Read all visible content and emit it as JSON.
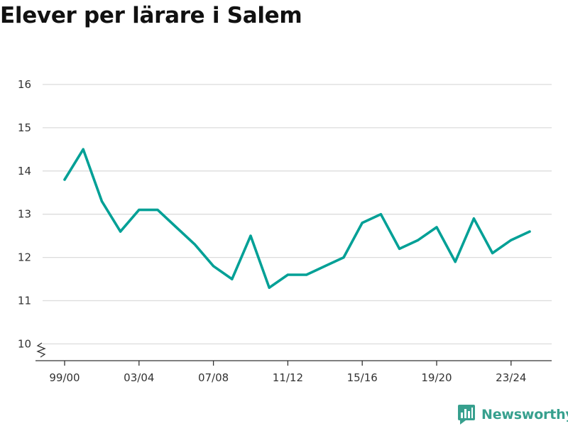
{
  "chart_data": {
    "type": "line",
    "title": "Elever per lärare i Salem",
    "xlabel": "",
    "ylabel": "",
    "x": [
      "99/00",
      "00/01",
      "01/02",
      "02/03",
      "03/04",
      "04/05",
      "05/06",
      "06/07",
      "07/08",
      "08/09",
      "09/10",
      "10/11",
      "11/12",
      "12/13",
      "13/14",
      "14/15",
      "15/16",
      "16/17",
      "17/18",
      "18/19",
      "19/20",
      "20/21",
      "21/22",
      "22/23",
      "23/24",
      "24/25"
    ],
    "x_tick_labels": [
      "99/00",
      "03/04",
      "07/08",
      "11/12",
      "15/16",
      "19/20",
      "23/24"
    ],
    "series": [
      {
        "values": [
          13.8,
          14.5,
          13.3,
          12.6,
          13.1,
          13.1,
          12.7,
          12.3,
          11.8,
          11.5,
          12.5,
          11.3,
          11.6,
          11.6,
          11.8,
          12.0,
          12.8,
          13.0,
          12.2,
          12.4,
          12.7,
          11.9,
          12.9,
          12.1,
          12.4,
          12.6
        ],
        "color": "#00a096"
      }
    ],
    "y_ticks": [
      10,
      11,
      12,
      13,
      14,
      15,
      16
    ],
    "ylim": [
      9.6,
      16
    ],
    "grid": true,
    "axis_break": true
  },
  "brand": {
    "name": "Newsworthy",
    "icon": "newsworthy-logo-icon",
    "color": "#37a08e"
  }
}
